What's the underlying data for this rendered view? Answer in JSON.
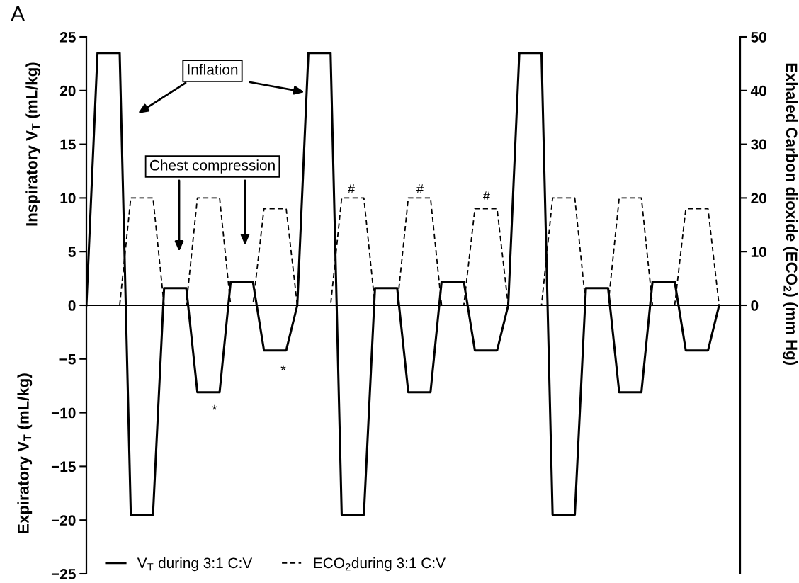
{
  "chart_data": {
    "type": "line",
    "categories": [
      null,
      null,
      null,
      null,
      null,
      null,
      null,
      null,
      null,
      null,
      null,
      null,
      null,
      null,
      null,
      null,
      null,
      null,
      null,
      null,
      null,
      null,
      null,
      null,
      null,
      null,
      null,
      null,
      null,
      null,
      null,
      null,
      null,
      null,
      null,
      null,
      null,
      null,
      null,
      null,
      null,
      null,
      null,
      null,
      null,
      null,
      null,
      null,
      null,
      null,
      null,
      null,
      null,
      null,
      null,
      null,
      null,
      null
    ],
    "series": [
      {
        "name": "V$_{T}$ during 3:1 C:V",
        "color": "#000000",
        "line_style": "solid",
        "values": [
          0,
          23.5,
          23.5,
          23.5,
          -19.5,
          -19.5,
          -19.5,
          1.6,
          1.6,
          1.6,
          -8.1,
          -8.1,
          -8.1,
          2.2,
          2.2,
          2.2,
          -4.2,
          -4.2,
          -4.2,
          0,
          23.5,
          23.5,
          23.5,
          -19.5,
          -19.5,
          -19.5,
          1.6,
          1.6,
          1.6,
          -8.1,
          -8.1,
          -8.1,
          2.2,
          2.2,
          2.2,
          -4.2,
          -4.2,
          -4.2,
          0,
          23.5,
          23.5,
          23.5,
          -19.5,
          -19.5,
          -19.5,
          1.6,
          1.6,
          1.6,
          -8.1,
          -8.1,
          -8.1,
          2.2,
          2.2,
          2.2,
          -4.2,
          -4.2,
          -4.2,
          0
        ]
      },
      {
        "name": "ECO$_{2}$during 3:1 C:V",
        "color": "#000000",
        "line_style": "dashed",
        "axis": "y2",
        "values": [
          null,
          null,
          null,
          0,
          20,
          20,
          20,
          0,
          0,
          0,
          20,
          20,
          20,
          0,
          0,
          0,
          18,
          18,
          18,
          0,
          0,
          0,
          0,
          20,
          20,
          20,
          0,
          0,
          0,
          20,
          20,
          20,
          0,
          0,
          0,
          18,
          18,
          18,
          0,
          0,
          0,
          0,
          20,
          20,
          20,
          0,
          0,
          0,
          20,
          20,
          20,
          0,
          0,
          0,
          18,
          18,
          18,
          0
        ]
      }
    ],
    "ylabel": "Inspiratory V$_{T}$ (mL/kg)",
    "y2label": "Exhaled Carbon dioxide (ECO$_{2}$) (mm Hg)",
    "ylim": [
      -25,
      25
    ],
    "yticks": [
      -25,
      -20,
      -15,
      -10,
      -5,
      0,
      5,
      10,
      15,
      20,
      25
    ],
    "y2lim": [
      -50,
      50
    ],
    "y2ticks": [
      0,
      10,
      20,
      30,
      40,
      50
    ],
    "annotations": [
      "A",
      "Inflation",
      "Chest compression",
      "#",
      "#",
      "#",
      "*",
      "*",
      "Expiratory V$_{T}$ (mL/kg)"
    ],
    "legend": "bottom left",
    "marker": "none"
  }
}
